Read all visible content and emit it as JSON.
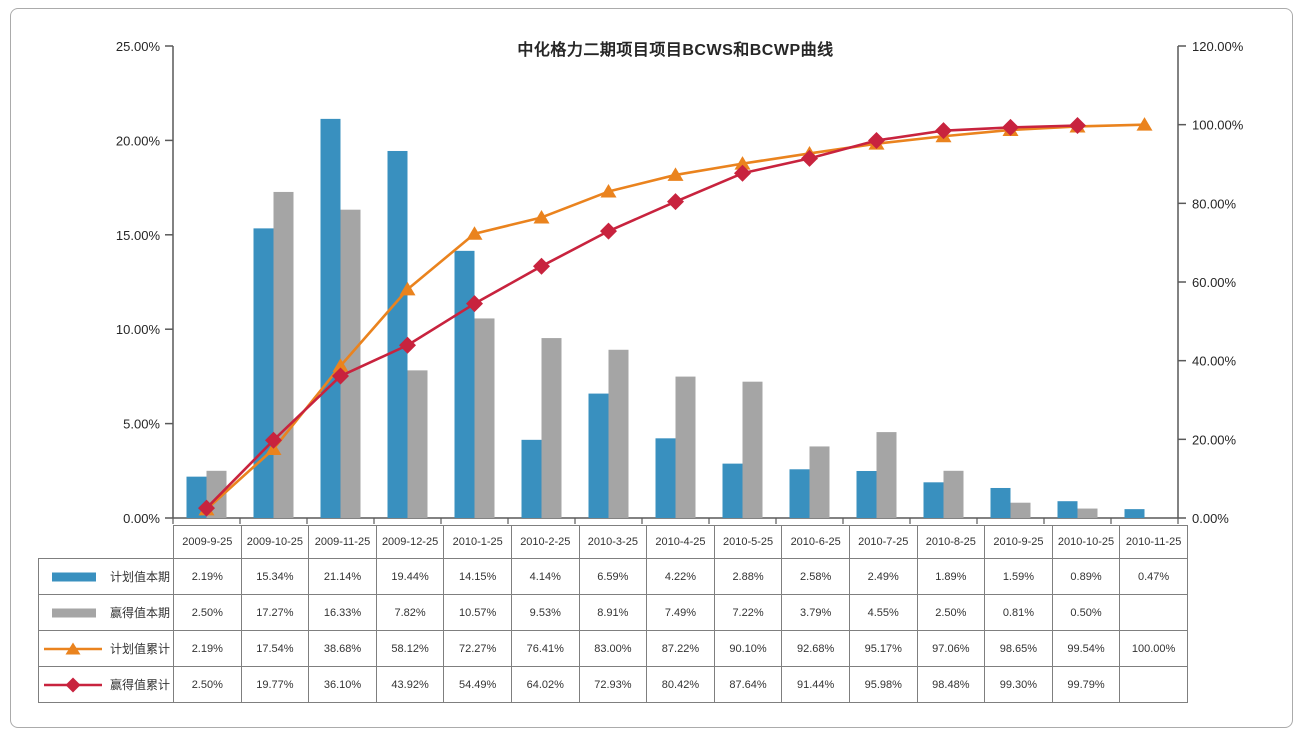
{
  "chart_data": {
    "type": "combo-bar-line",
    "title": "中化格力二期项目项目BCWS和BCWP曲线",
    "grid": false,
    "legend_position": "table-left-column",
    "categories": [
      "2009-9-25",
      "2009-10-25",
      "2009-11-25",
      "2009-12-25",
      "2010-1-25",
      "2010-2-25",
      "2010-3-25",
      "2010-4-25",
      "2010-5-25",
      "2010-6-25",
      "2010-7-25",
      "2010-8-25",
      "2010-9-25",
      "2010-10-25",
      "2010-11-25"
    ],
    "left_axis": {
      "min": 0,
      "max": 25,
      "ticks": [
        "0.00%",
        "5.00%",
        "10.00%",
        "15.00%",
        "20.00%",
        "25.00%"
      ]
    },
    "right_axis": {
      "min": 0,
      "max": 120,
      "ticks": [
        "0.00%",
        "20.00%",
        "40.00%",
        "60.00%",
        "80.00%",
        "100.00%",
        "120.00%"
      ]
    },
    "series": [
      {
        "id": "planned-current",
        "name": "计划值本期",
        "type": "bar",
        "axis": "left",
        "color": "#3990BF",
        "marker": "none",
        "values": [
          2.19,
          15.34,
          21.14,
          19.44,
          14.15,
          4.14,
          6.59,
          4.22,
          2.88,
          2.58,
          2.49,
          1.89,
          1.59,
          0.89,
          0.47
        ],
        "display": [
          "2.19%",
          "15.34%",
          "21.14%",
          "19.44%",
          "14.15%",
          "4.14%",
          "6.59%",
          "4.22%",
          "2.88%",
          "2.58%",
          "2.49%",
          "1.89%",
          "1.59%",
          "0.89%",
          "0.47%"
        ]
      },
      {
        "id": "earned-current",
        "name": "赢得值本期",
        "type": "bar",
        "axis": "left",
        "color": "#A5A5A5",
        "marker": "none",
        "values": [
          2.5,
          17.27,
          16.33,
          7.82,
          10.57,
          9.53,
          8.91,
          7.49,
          7.22,
          3.79,
          4.55,
          2.5,
          0.81,
          0.5,
          null
        ],
        "display": [
          "2.50%",
          "17.27%",
          "16.33%",
          "7.82%",
          "10.57%",
          "9.53%",
          "8.91%",
          "7.49%",
          "7.22%",
          "3.79%",
          "4.55%",
          "2.50%",
          "0.81%",
          "0.50%",
          ""
        ]
      },
      {
        "id": "planned-cumulative",
        "name": "计划值累计",
        "type": "line",
        "axis": "right",
        "color": "#EA831E",
        "marker": "triangle",
        "values": [
          2.19,
          17.54,
          38.68,
          58.12,
          72.27,
          76.41,
          83.0,
          87.22,
          90.1,
          92.68,
          95.17,
          97.06,
          98.65,
          99.54,
          100.0
        ],
        "display": [
          "2.19%",
          "17.54%",
          "38.68%",
          "58.12%",
          "72.27%",
          "76.41%",
          "83.00%",
          "87.22%",
          "90.10%",
          "92.68%",
          "95.17%",
          "97.06%",
          "98.65%",
          "99.54%",
          "100.00%"
        ]
      },
      {
        "id": "earned-cumulative",
        "name": "赢得值累计",
        "type": "line",
        "axis": "right",
        "color": "#C8233E",
        "marker": "diamond",
        "values": [
          2.5,
          19.77,
          36.1,
          43.92,
          54.49,
          64.02,
          72.93,
          80.42,
          87.64,
          91.44,
          95.98,
          98.48,
          99.3,
          99.79,
          null
        ],
        "display": [
          "2.50%",
          "19.77%",
          "36.10%",
          "43.92%",
          "54.49%",
          "64.02%",
          "72.93%",
          "80.42%",
          "87.64%",
          "91.44%",
          "95.98%",
          "98.48%",
          "99.30%",
          "99.79%",
          ""
        ]
      }
    ],
    "colors": {
      "planned_current_bar": "#3990BF",
      "earned_current_bar": "#A5A5A5",
      "planned_cumulative_line": "#EA831E",
      "earned_cumulative_line": "#C8233E",
      "axis_line": "#595959",
      "table_border": "#7F7F7F"
    }
  }
}
